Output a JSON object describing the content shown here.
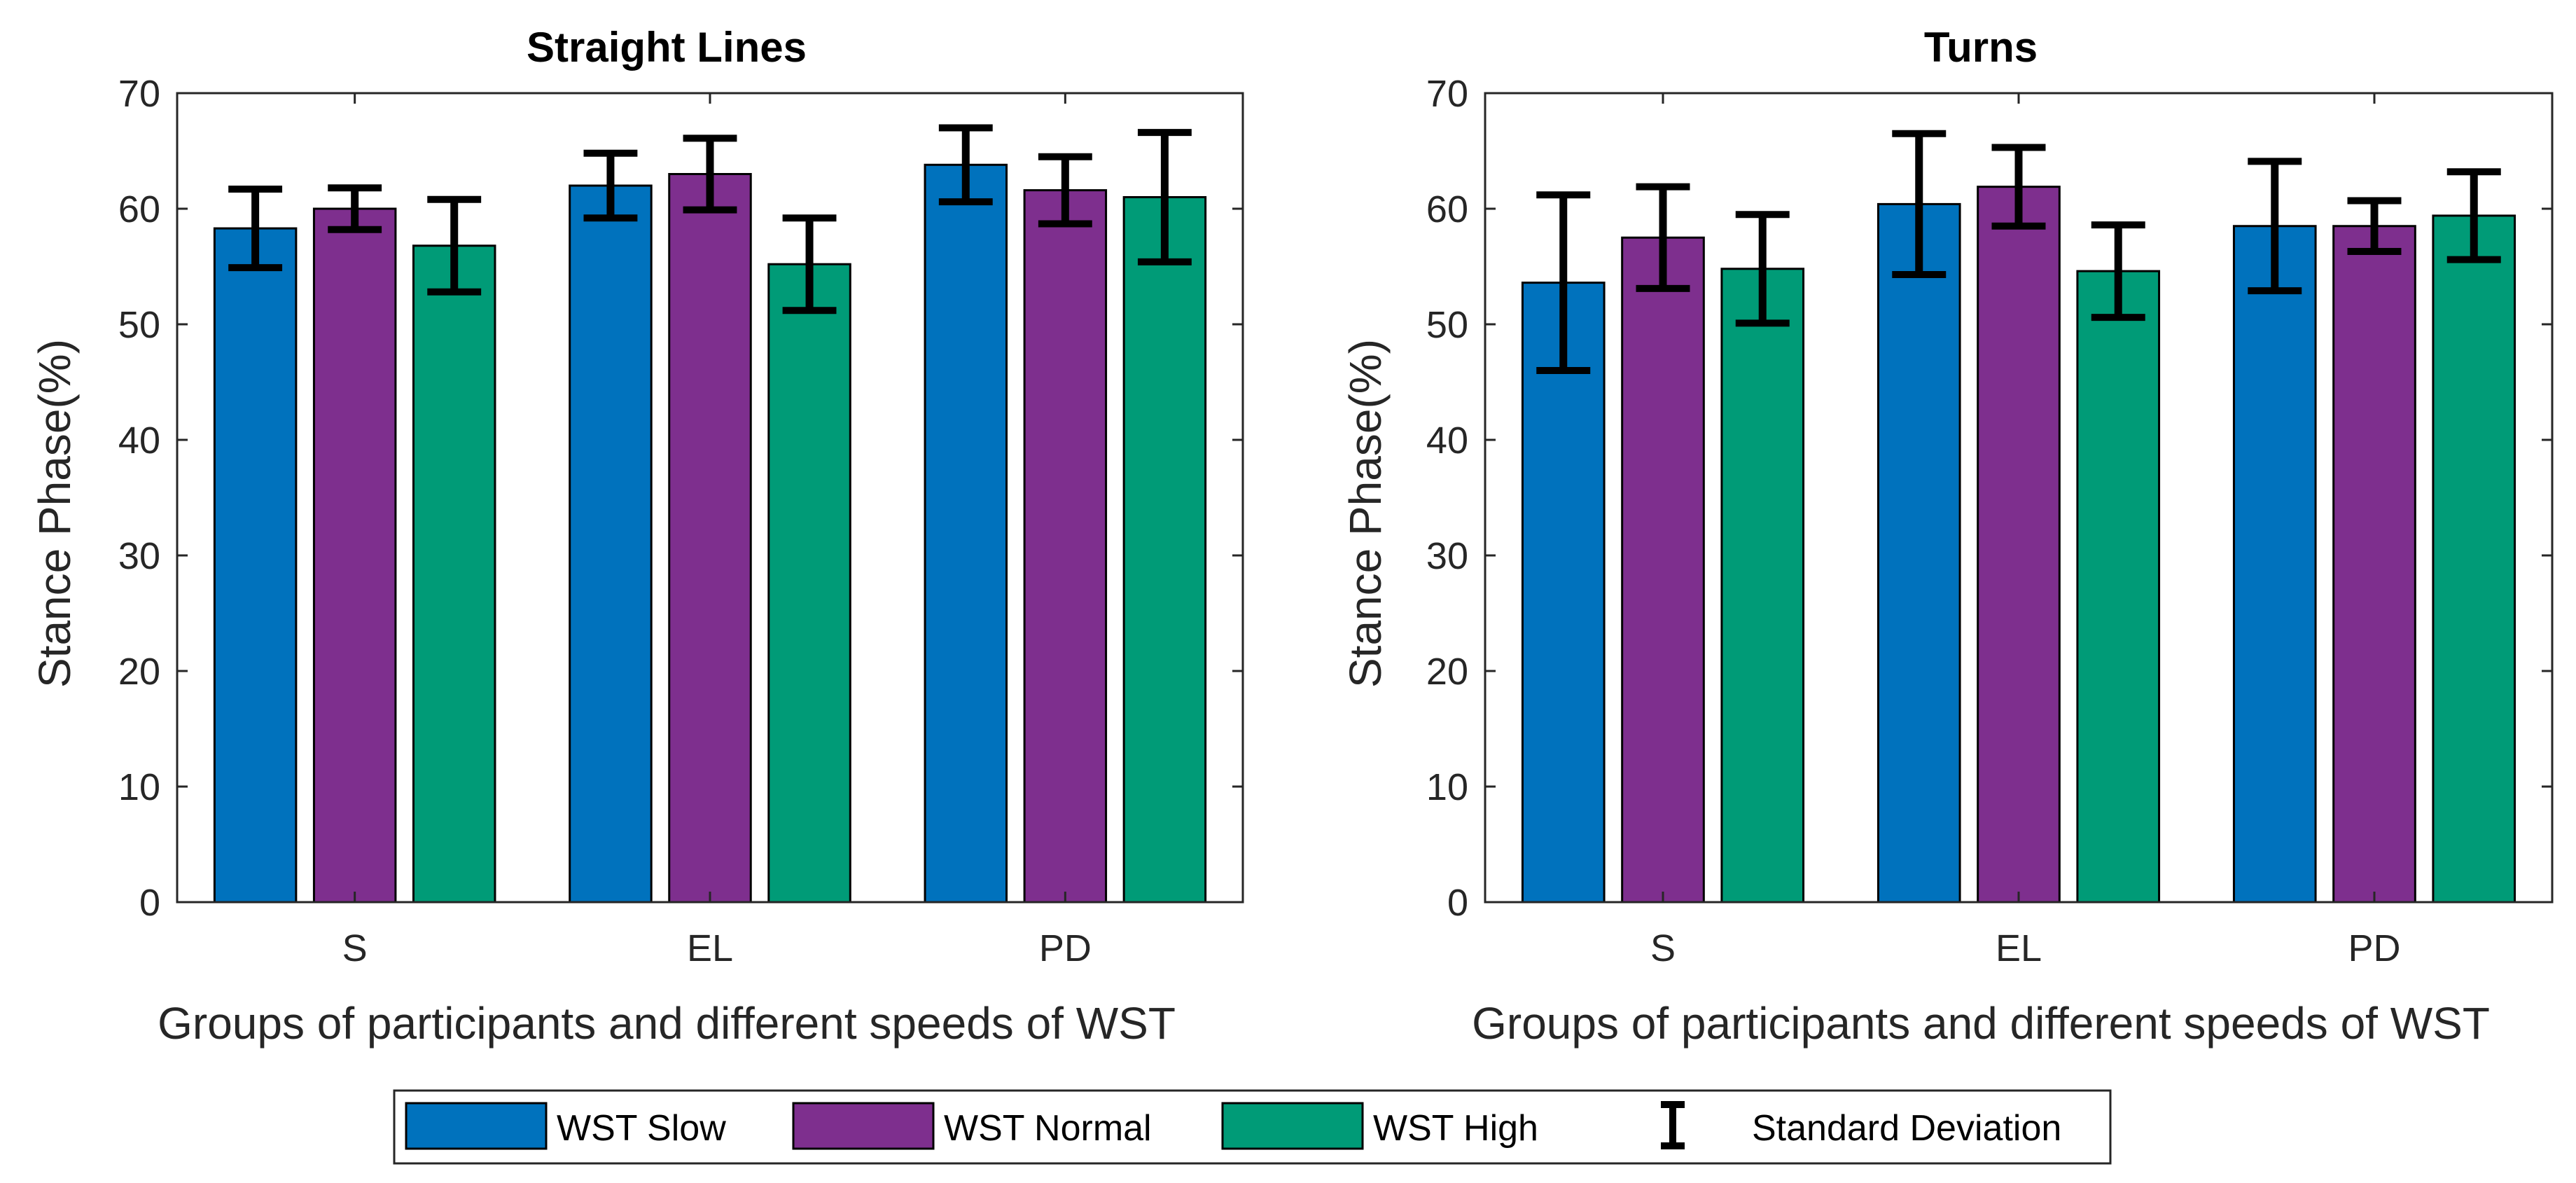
{
  "chart_data": [
    {
      "type": "bar",
      "title": "Straight Lines",
      "xlabel": "Groups of participants and different speeds of WST",
      "ylabel": "Stance Phase(%)",
      "ylim": [
        0,
        70
      ],
      "yticks": [
        "0",
        "10",
        "20",
        "30",
        "40",
        "50",
        "60",
        "70"
      ],
      "categories": [
        "S",
        "EL",
        "PD"
      ],
      "series": [
        {
          "name": "WST Slow",
          "values": [
            58.3,
            62.0,
            63.8
          ],
          "std": [
            3.4,
            2.8,
            3.2
          ]
        },
        {
          "name": "WST Normal",
          "values": [
            60.0,
            63.0,
            61.6
          ],
          "std": [
            1.8,
            3.1,
            2.9
          ]
        },
        {
          "name": "WST High",
          "values": [
            56.8,
            55.2,
            61.0
          ],
          "std": [
            4.0,
            4.0,
            5.6
          ]
        }
      ],
      "legend": "bottom"
    },
    {
      "type": "bar",
      "title": "Turns",
      "xlabel": "Groups of participants and different speeds of WST",
      "ylabel": "Stance Phase(%)",
      "ylim": [
        0,
        70
      ],
      "yticks": [
        "0",
        "10",
        "20",
        "30",
        "40",
        "50",
        "60",
        "70"
      ],
      "categories": [
        "S",
        "EL",
        "PD"
      ],
      "series": [
        {
          "name": "WST Slow",
          "values": [
            53.6,
            60.4,
            58.5
          ],
          "std": [
            7.6,
            6.1,
            5.6
          ]
        },
        {
          "name": "WST Normal",
          "values": [
            57.5,
            61.9,
            58.5
          ],
          "std": [
            4.4,
            3.4,
            2.2
          ]
        },
        {
          "name": "WST High",
          "values": [
            54.8,
            54.6,
            59.4
          ],
          "std": [
            4.7,
            4.0,
            3.8
          ]
        }
      ],
      "legend": "bottom"
    }
  ],
  "legend": {
    "items": [
      {
        "label": "WST Slow",
        "color": "#0072BD"
      },
      {
        "label": "WST Normal",
        "color": "#7E2F8E"
      },
      {
        "label": "WST High",
        "color": "#009B77"
      }
    ],
    "std_label": "Standard Deviation"
  },
  "colors": {
    "series": [
      "#0072BD",
      "#7E2F8E",
      "#009B77"
    ],
    "axis": "#262626",
    "errorbar": "#000000"
  }
}
